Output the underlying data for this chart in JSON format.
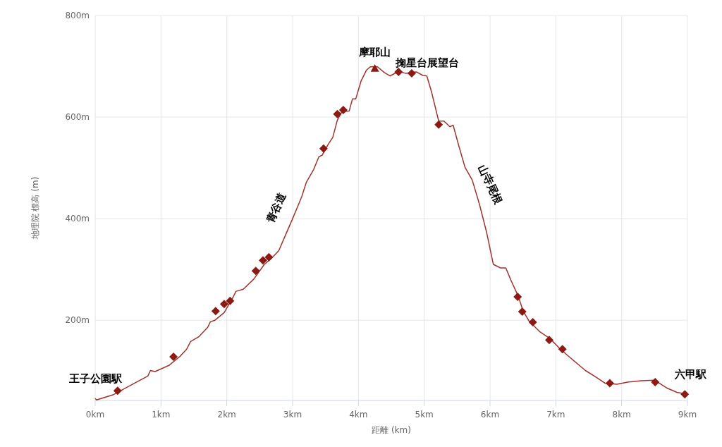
{
  "chart_data": {
    "type": "line",
    "xlabel": "距離 (km)",
    "ylabel": "地理院 標高 (m)",
    "xlim": [
      0,
      9
    ],
    "ylim": [
      42,
      800
    ],
    "xticks": [
      {
        "value": 0,
        "label": "0km"
      },
      {
        "value": 1,
        "label": "1km"
      },
      {
        "value": 2,
        "label": "2km"
      },
      {
        "value": 3,
        "label": "3km"
      },
      {
        "value": 4,
        "label": "4km"
      },
      {
        "value": 5,
        "label": "5km"
      },
      {
        "value": 6,
        "label": "6km"
      },
      {
        "value": 7,
        "label": "7km"
      },
      {
        "value": 8,
        "label": "8km"
      },
      {
        "value": 9,
        "label": "9km"
      }
    ],
    "yticks": [
      {
        "value": 200,
        "label": "200m"
      },
      {
        "value": 400,
        "label": "400m"
      },
      {
        "value": 600,
        "label": "600m"
      },
      {
        "value": 800,
        "label": "800m"
      }
    ],
    "grid": true,
    "series": [
      {
        "color": "#a0322c",
        "marker": "none",
        "x": [
          0,
          0.02,
          0.27,
          0.54,
          0.8,
          0.84,
          0.91,
          1.12,
          1.29,
          1.39,
          1.45,
          1.57,
          1.71,
          1.75,
          1.82,
          1.96,
          2.09,
          2.14,
          2.25,
          2.41,
          2.57,
          2.68,
          2.79,
          2.89,
          3.0,
          3.09,
          3.14,
          3.21,
          3.32,
          3.4,
          3.45,
          3.54,
          3.61,
          3.68,
          3.75,
          3.86,
          3.91,
          3.96,
          4.04,
          4.12,
          4.18,
          4.29,
          4.39,
          4.48,
          4.61,
          4.72,
          4.88,
          4.98,
          5.04,
          5.11,
          5.22,
          5.3,
          5.39,
          5.44,
          5.52,
          5.62,
          5.73,
          5.84,
          5.95,
          6.05,
          6.16,
          6.24,
          6.32,
          6.43,
          6.5,
          6.59,
          6.75,
          6.91,
          7.07,
          7.23,
          7.45,
          7.61,
          7.75,
          7.93,
          8.09,
          8.3,
          8.5,
          8.68,
          8.84,
          8.93
        ],
        "values": [
          46,
          43,
          53,
          72,
          90,
          101,
          99,
          111,
          129,
          143,
          158,
          167,
          186,
          197,
          200,
          215,
          244,
          257,
          261,
          281,
          310,
          322,
          337,
          367,
          400,
          428,
          444,
          472,
          497,
          522,
          525,
          546,
          560,
          594,
          611,
          612,
          636,
          636,
          671,
          692,
          699,
          699,
          688,
          681,
          690,
          686,
          689,
          682,
          681,
          650,
          592,
          592,
          581,
          584,
          546,
          501,
          476,
          428,
          372,
          310,
          303,
          303,
          278,
          247,
          219,
          199,
          178,
          164,
          143,
          125,
          101,
          88,
          76,
          74,
          78,
          81,
          82,
          67,
          58,
          56
        ]
      },
      {
        "type": "scatter",
        "color": "#8b1a13",
        "marker": "diamond",
        "x": [
          0.34,
          1.19,
          1.83,
          1.96,
          2.05,
          2.44,
          2.55,
          2.64,
          3.47,
          3.68,
          3.77,
          4.61,
          4.81,
          5.22,
          6.42,
          6.49,
          6.65,
          6.9,
          7.1,
          7.82,
          8.51,
          8.96
        ],
        "values": [
          61,
          128,
          218,
          232,
          238,
          297,
          318,
          324,
          538,
          606,
          614,
          689,
          686,
          585,
          246,
          217,
          196,
          161,
          143,
          76,
          78,
          54
        ]
      },
      {
        "type": "scatter",
        "color": "#8b1a13",
        "marker": "triangle",
        "x": [
          4.25
        ],
        "values": [
          696
        ]
      }
    ],
    "annotations": [
      {
        "text": "王子公園駅",
        "x": 0,
        "y": 46
      },
      {
        "text": "摩耶山",
        "x": 4.25,
        "y": 696
      },
      {
        "text": "掬星台展望台",
        "x": 4.61,
        "y": 689
      },
      "青谷道",
      "山寺尾根",
      {
        "text": "六甲駅",
        "x": 9,
        "y": 54
      }
    ]
  }
}
